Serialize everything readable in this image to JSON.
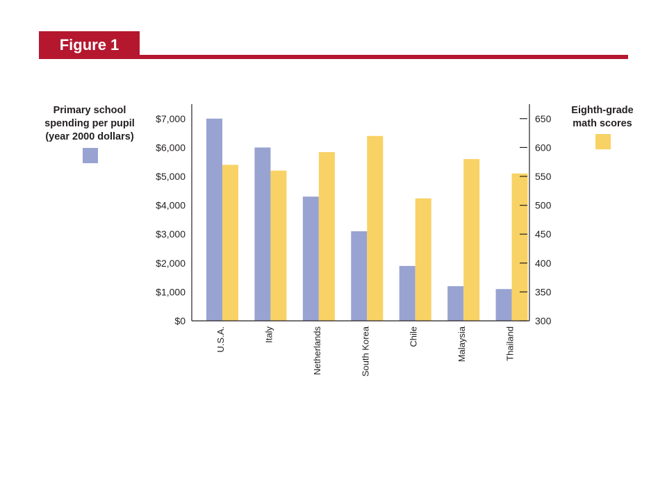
{
  "header": {
    "figure_label": "Figure 1",
    "accent_color": "#b5172f"
  },
  "legend": {
    "left": {
      "title": "Primary school spending per pupil (year 2000 dollars)",
      "color": "#98a3d2"
    },
    "right": {
      "title": "Eighth-grade math scores",
      "color": "#f8d264"
    }
  },
  "chart_data": {
    "type": "bar",
    "categories": [
      "U.S.A.",
      "Italy",
      "Netherlands",
      "South Korea",
      "Chile",
      "Malaysia",
      "Thailand"
    ],
    "series": [
      {
        "name": "Primary school spending per pupil (year 2000 dollars)",
        "axis": "left",
        "color": "#98a3d2",
        "values": [
          7000,
          6000,
          4300,
          3100,
          1900,
          1200,
          1100
        ]
      },
      {
        "name": "Eighth-grade math scores",
        "axis": "right",
        "color": "#f8d264",
        "values": [
          570,
          560,
          592,
          620,
          512,
          580,
          555
        ]
      }
    ],
    "y_left": {
      "range": [
        0,
        7500
      ],
      "ticks": [
        0,
        1000,
        2000,
        3000,
        4000,
        5000,
        6000,
        7000
      ],
      "tick_labels": [
        "$0",
        "$1,000",
        "$2,000",
        "$3,000",
        "$4,000",
        "$5,000",
        "$6,000",
        "$7,000"
      ]
    },
    "y_right": {
      "range": [
        300,
        675
      ],
      "ticks": [
        300,
        350,
        400,
        450,
        500,
        550,
        600,
        650
      ],
      "tick_labels": [
        "300",
        "350",
        "400",
        "450",
        "500",
        "550",
        "600",
        "650"
      ]
    },
    "grid": false,
    "legend_placement": "left and right of plot"
  }
}
